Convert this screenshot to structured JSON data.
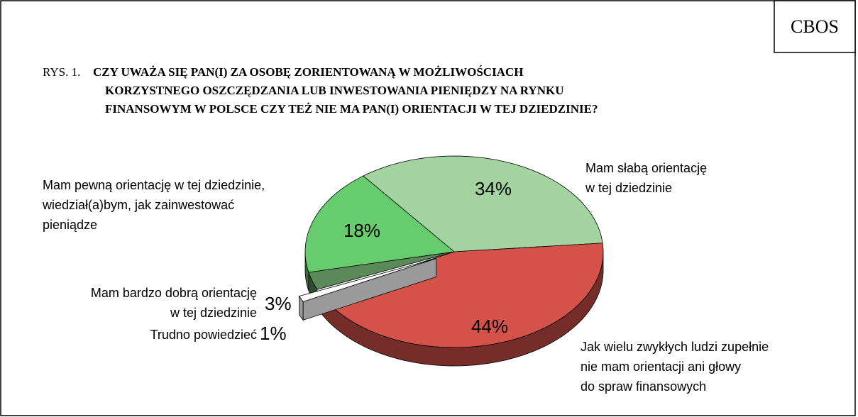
{
  "chart_data": {
    "type": "pie",
    "source": "CBOS",
    "figure_label": "RYS. 1.",
    "title": [
      "CZY UWAŻA SIĘ PAN(I) ZA OSOBĘ ZORIENTOWANĄ W MOŻLIWOŚCIACH",
      "KORZYSTNEGO OSZCZĘDZANIA LUB INWESTOWANIA PIENIĘDZY NA RYNKU",
      "FINANSOWYM W POLSCE CZY TEŻ NIE MA PAN(I) ORIENTACJI W TEJ DZIEDZINIE?"
    ],
    "categories": [
      [
        "Mam słabą orientację",
        "w tej dziedzinie"
      ],
      [
        "Jak wielu zwykłych ludzi zupełnie",
        "nie mam orientacji ani głowy",
        "do spraw finansowych"
      ],
      [
        "Trudno powiedzieć"
      ],
      [
        "Mam bardzo dobrą orientację",
        "w tej dziedzinie"
      ],
      [
        "Mam pewną orientację w tej dziedzinie,",
        "wiedział(a)bym, jak zainwestować",
        "pieniądze"
      ]
    ],
    "values": [
      34,
      44,
      1,
      3,
      18
    ],
    "value_labels": [
      "34%",
      "44%",
      "1%",
      "3%",
      "18%"
    ],
    "colors": [
      "#a3d3a1",
      "#d4524a",
      "#ffffff",
      "#5a8a5a",
      "#66cc6e"
    ],
    "exploded": [
      false,
      false,
      true,
      false,
      false
    ]
  }
}
